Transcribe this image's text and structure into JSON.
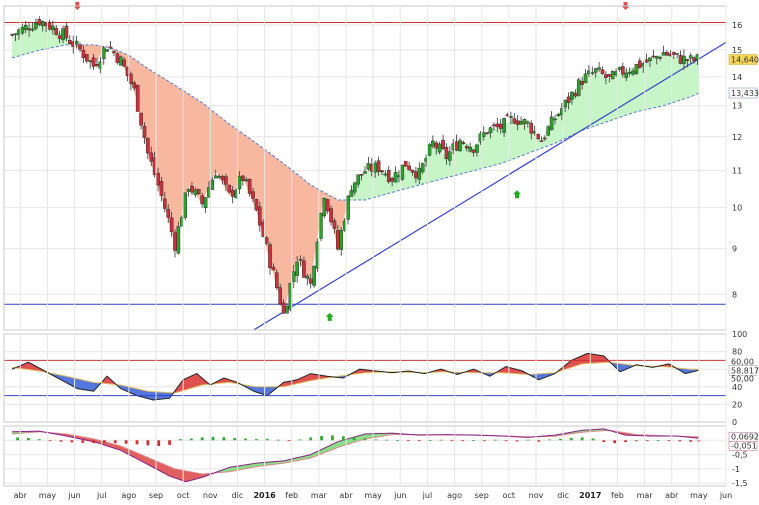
{
  "chart_data": [
    {
      "type": "candlestick",
      "title": "",
      "xlabel": "",
      "ylabel": "",
      "y_scale": "log",
      "ylim": [
        7.3,
        16.8
      ],
      "yticks": [
        8,
        9,
        10,
        11,
        12,
        13,
        14,
        15,
        16
      ],
      "last_price_label": "14,640",
      "moving_average_label": "13,433",
      "x_ticks": [
        {
          "label": "abr",
          "x": 0.3,
          "bold": false
        },
        {
          "label": "may",
          "x": 1.3,
          "bold": false
        },
        {
          "label": "jun",
          "x": 2.3,
          "bold": false
        },
        {
          "label": "jul",
          "x": 3.3,
          "bold": false
        },
        {
          "label": "ago",
          "x": 4.3,
          "bold": false
        },
        {
          "label": "sep",
          "x": 5.3,
          "bold": false
        },
        {
          "label": "oct",
          "x": 6.3,
          "bold": false
        },
        {
          "label": "nov",
          "x": 7.3,
          "bold": false
        },
        {
          "label": "dic",
          "x": 8.3,
          "bold": false
        },
        {
          "label": "2016",
          "x": 9.3,
          "bold": true
        },
        {
          "label": "feb",
          "x": 10.3,
          "bold": false
        },
        {
          "label": "mar",
          "x": 11.3,
          "bold": false
        },
        {
          "label": "abr",
          "x": 12.3,
          "bold": false
        },
        {
          "label": "may",
          "x": 13.3,
          "bold": false
        },
        {
          "label": "jun",
          "x": 14.3,
          "bold": false
        },
        {
          "label": "jul",
          "x": 15.3,
          "bold": false
        },
        {
          "label": "ago",
          "x": 16.3,
          "bold": false
        },
        {
          "label": "sep",
          "x": 17.3,
          "bold": false
        },
        {
          "label": "oct",
          "x": 18.3,
          "bold": false
        },
        {
          "label": "nov",
          "x": 19.3,
          "bold": false
        },
        {
          "label": "dic",
          "x": 20.3,
          "bold": false
        },
        {
          "label": "2017",
          "x": 21.3,
          "bold": true
        },
        {
          "label": "feb",
          "x": 22.3,
          "bold": false
        },
        {
          "label": "mar",
          "x": 23.3,
          "bold": false
        },
        {
          "label": "abr",
          "x": 24.3,
          "bold": false
        },
        {
          "label": "may",
          "x": 25.3,
          "bold": false
        },
        {
          "label": "jun",
          "x": 26.3,
          "bold": false
        }
      ],
      "price_path": [
        [
          0.0,
          15.6
        ],
        [
          0.5,
          15.9
        ],
        [
          1.0,
          16.2
        ],
        [
          1.5,
          15.9
        ],
        [
          2.0,
          15.5
        ],
        [
          2.5,
          15.0
        ],
        [
          3.0,
          14.4
        ],
        [
          3.5,
          15.2
        ],
        [
          4.0,
          14.6
        ],
        [
          4.5,
          13.5
        ],
        [
          5.0,
          11.5
        ],
        [
          5.5,
          10.3
        ],
        [
          6.0,
          9.1
        ],
        [
          6.5,
          10.6
        ],
        [
          7.0,
          10.1
        ],
        [
          7.5,
          11.0
        ],
        [
          8.0,
          10.3
        ],
        [
          8.5,
          10.8
        ],
        [
          9.0,
          9.9
        ],
        [
          9.5,
          8.7
        ],
        [
          10.0,
          7.6
        ],
        [
          10.5,
          8.8
        ],
        [
          11.0,
          8.2
        ],
        [
          11.5,
          10.4
        ],
        [
          12.0,
          9.0
        ],
        [
          12.5,
          10.6
        ],
        [
          13.0,
          11.0
        ],
        [
          13.5,
          11.1
        ],
        [
          14.0,
          10.8
        ],
        [
          14.5,
          11.2
        ],
        [
          15.0,
          10.9
        ],
        [
          15.5,
          11.8
        ],
        [
          16.0,
          11.4
        ],
        [
          16.5,
          11.9
        ],
        [
          17.0,
          11.7
        ],
        [
          17.5,
          12.2
        ],
        [
          18.0,
          12.3
        ],
        [
          18.5,
          12.6
        ],
        [
          19.0,
          12.4
        ],
        [
          19.5,
          11.9
        ],
        [
          20.0,
          12.6
        ],
        [
          20.5,
          13.2
        ],
        [
          21.0,
          13.9
        ],
        [
          21.5,
          14.2
        ],
        [
          22.0,
          13.9
        ],
        [
          22.5,
          14.2
        ],
        [
          23.0,
          14.4
        ],
        [
          23.5,
          14.6
        ],
        [
          24.0,
          14.9
        ],
        [
          24.5,
          14.7
        ],
        [
          25.0,
          14.6
        ],
        [
          25.3,
          14.64
        ]
      ],
      "moving_average": [
        [
          0.0,
          14.7
        ],
        [
          1.0,
          15.0
        ],
        [
          2.0,
          15.2
        ],
        [
          3.0,
          15.2
        ],
        [
          3.6,
          15.1
        ],
        [
          4.3,
          14.8
        ],
        [
          5.0,
          14.3
        ],
        [
          6.0,
          13.7
        ],
        [
          7.0,
          13.1
        ],
        [
          8.0,
          12.4
        ],
        [
          9.0,
          11.8
        ],
        [
          10.0,
          11.2
        ],
        [
          11.0,
          10.6
        ],
        [
          12.0,
          10.2
        ],
        [
          13.0,
          10.2
        ],
        [
          14.0,
          10.4
        ],
        [
          15.0,
          10.6
        ],
        [
          16.0,
          10.8
        ],
        [
          17.0,
          11.0
        ],
        [
          18.0,
          11.2
        ],
        [
          19.0,
          11.5
        ],
        [
          20.0,
          11.8
        ],
        [
          21.0,
          12.2
        ],
        [
          22.0,
          12.5
        ],
        [
          23.0,
          12.8
        ],
        [
          24.0,
          13.0
        ],
        [
          25.0,
          13.3
        ],
        [
          25.3,
          13.43
        ]
      ],
      "horizontal_lines": [
        {
          "value": 16.1,
          "color": "#cc3333"
        },
        {
          "value": 7.8,
          "color": "#3344cc"
        }
      ],
      "trendline": {
        "start": [
          8.9,
          7.3
        ],
        "end": [
          26.3,
          15.3
        ],
        "color": "#3344cc"
      },
      "signal_arrows": [
        {
          "x": 2.4,
          "direction": "down",
          "color": "#e05050"
        },
        {
          "x": 22.6,
          "direction": "down",
          "color": "#e05050"
        },
        {
          "x": 11.7,
          "value": 7.55,
          "direction": "up",
          "color": "#22aa22"
        },
        {
          "x": 18.6,
          "value": 10.35,
          "direction": "up",
          "color": "#22aa22"
        }
      ],
      "colors": {
        "up": "#2e9e2e",
        "down": "#c8323c",
        "wick": "#333333",
        "fill_above": "#c8f5c8",
        "fill_below": "#f8b8a0",
        "ma_line": "#5577cc",
        "trendline": "#3344cc"
      }
    },
    {
      "type": "line",
      "title": "",
      "ylim": [
        0,
        100
      ],
      "yticks": [
        0,
        20,
        40,
        60,
        80,
        100
      ],
      "levels": [
        {
          "value": 70,
          "color": "#cc3333"
        },
        {
          "value": 30,
          "color": "#3344cc"
        }
      ],
      "value_labels": [
        "58,817",
        "60,00",
        "50,00"
      ],
      "oscillator": [
        [
          0.0,
          60
        ],
        [
          0.6,
          68
        ],
        [
          1.2,
          58
        ],
        [
          1.8,
          48
        ],
        [
          2.4,
          38
        ],
        [
          3.0,
          35
        ],
        [
          3.5,
          52
        ],
        [
          4.0,
          38
        ],
        [
          4.6,
          30
        ],
        [
          5.2,
          25
        ],
        [
          5.8,
          27
        ],
        [
          6.3,
          48
        ],
        [
          6.8,
          55
        ],
        [
          7.3,
          42
        ],
        [
          7.8,
          50
        ],
        [
          8.3,
          45
        ],
        [
          8.9,
          35
        ],
        [
          9.4,
          30
        ],
        [
          10.0,
          45
        ],
        [
          10.5,
          48
        ],
        [
          11.0,
          55
        ],
        [
          11.6,
          52
        ],
        [
          12.2,
          50
        ],
        [
          12.8,
          60
        ],
        [
          13.4,
          58
        ],
        [
          14.0,
          56
        ],
        [
          14.6,
          58
        ],
        [
          15.2,
          55
        ],
        [
          15.8,
          60
        ],
        [
          16.4,
          54
        ],
        [
          17.0,
          60
        ],
        [
          17.6,
          52
        ],
        [
          18.2,
          63
        ],
        [
          18.8,
          58
        ],
        [
          19.4,
          48
        ],
        [
          20.0,
          55
        ],
        [
          20.6,
          70
        ],
        [
          21.2,
          78
        ],
        [
          21.8,
          75
        ],
        [
          22.4,
          57
        ],
        [
          23.0,
          65
        ],
        [
          23.6,
          62
        ],
        [
          24.2,
          66
        ],
        [
          24.8,
          55
        ],
        [
          25.3,
          58.8
        ]
      ],
      "signal": [
        [
          0.0,
          62
        ],
        [
          1.0,
          58
        ],
        [
          2.0,
          52
        ],
        [
          3.0,
          45
        ],
        [
          4.0,
          42
        ],
        [
          5.0,
          35
        ],
        [
          6.0,
          33
        ],
        [
          7.0,
          42
        ],
        [
          8.0,
          45
        ],
        [
          9.0,
          40
        ],
        [
          10.0,
          40
        ],
        [
          11.0,
          47
        ],
        [
          12.0,
          52
        ],
        [
          13.0,
          56
        ],
        [
          14.0,
          57
        ],
        [
          15.0,
          56
        ],
        [
          16.0,
          57
        ],
        [
          17.0,
          56
        ],
        [
          18.0,
          56
        ],
        [
          19.0,
          54
        ],
        [
          20.0,
          56
        ],
        [
          21.0,
          66
        ],
        [
          22.0,
          68
        ],
        [
          23.0,
          64
        ],
        [
          24.0,
          63
        ],
        [
          25.0,
          60
        ],
        [
          25.3,
          60
        ]
      ],
      "colors": {
        "line": "#222222",
        "signal": "#e0c060",
        "above": "#e05050",
        "below": "#5577dd"
      }
    },
    {
      "type": "bar",
      "title": "",
      "ylim": [
        -1.6,
        0.5
      ],
      "yticks": [
        -1.5,
        -1,
        -0.5,
        0
      ],
      "ytick_labels": [
        "-1,5",
        "-1",
        "-0,5",
        "0"
      ],
      "value_labels": [
        "0,0692",
        "-0,051"
      ],
      "macd": [
        [
          0.0,
          0.3
        ],
        [
          1.0,
          0.32
        ],
        [
          2.0,
          0.15
        ],
        [
          3.0,
          -0.05
        ],
        [
          4.0,
          -0.35
        ],
        [
          5.0,
          -0.85
        ],
        [
          5.8,
          -1.25
        ],
        [
          6.4,
          -1.45
        ],
        [
          7.0,
          -1.3
        ],
        [
          8.0,
          -0.95
        ],
        [
          9.0,
          -0.8
        ],
        [
          10.0,
          -0.72
        ],
        [
          11.0,
          -0.5
        ],
        [
          12.0,
          -0.05
        ],
        [
          13.0,
          0.22
        ],
        [
          14.0,
          0.25
        ],
        [
          15.0,
          0.18
        ],
        [
          16.0,
          0.2
        ],
        [
          17.0,
          0.18
        ],
        [
          18.0,
          0.15
        ],
        [
          19.0,
          0.1
        ],
        [
          20.0,
          0.18
        ],
        [
          21.0,
          0.35
        ],
        [
          21.8,
          0.4
        ],
        [
          22.6,
          0.18
        ],
        [
          23.5,
          0.15
        ],
        [
          24.5,
          0.15
        ],
        [
          25.3,
          0.07
        ]
      ],
      "macd_signal": [
        [
          0.0,
          0.22
        ],
        [
          1.0,
          0.3
        ],
        [
          2.0,
          0.22
        ],
        [
          3.0,
          0.05
        ],
        [
          4.0,
          -0.2
        ],
        [
          5.0,
          -0.6
        ],
        [
          6.0,
          -1.0
        ],
        [
          7.0,
          -1.18
        ],
        [
          8.0,
          -1.1
        ],
        [
          9.0,
          -0.92
        ],
        [
          10.0,
          -0.8
        ],
        [
          11.0,
          -0.62
        ],
        [
          12.0,
          -0.25
        ],
        [
          13.0,
          0.05
        ],
        [
          14.0,
          0.2
        ],
        [
          15.0,
          0.2
        ],
        [
          16.0,
          0.19
        ],
        [
          17.0,
          0.19
        ],
        [
          18.0,
          0.16
        ],
        [
          19.0,
          0.12
        ],
        [
          20.0,
          0.14
        ],
        [
          21.0,
          0.28
        ],
        [
          22.0,
          0.35
        ],
        [
          23.0,
          0.2
        ],
        [
          24.0,
          0.16
        ],
        [
          25.3,
          0.12
        ]
      ],
      "histogram": [
        [
          0.2,
          0.1
        ],
        [
          0.6,
          0.08
        ],
        [
          1.0,
          0.04
        ],
        [
          1.4,
          -0.02
        ],
        [
          1.8,
          -0.05
        ],
        [
          2.2,
          -0.07
        ],
        [
          2.6,
          -0.09
        ],
        [
          3.0,
          -0.1
        ],
        [
          3.4,
          -0.09
        ],
        [
          3.8,
          -0.1
        ],
        [
          4.2,
          -0.12
        ],
        [
          4.6,
          -0.14
        ],
        [
          5.0,
          -0.18
        ],
        [
          5.4,
          -0.2
        ],
        [
          5.8,
          -0.16
        ],
        [
          6.2,
          0.04
        ],
        [
          6.6,
          0.06
        ],
        [
          7.0,
          0.1
        ],
        [
          7.4,
          0.12
        ],
        [
          7.8,
          0.11
        ],
        [
          8.2,
          0.08
        ],
        [
          8.6,
          0.06
        ],
        [
          9.0,
          0.04
        ],
        [
          9.4,
          0.05
        ],
        [
          9.8,
          0.02
        ],
        [
          10.2,
          -0.03
        ],
        [
          10.6,
          0.03
        ],
        [
          11.0,
          0.1
        ],
        [
          11.4,
          0.15
        ],
        [
          11.8,
          0.17
        ],
        [
          12.2,
          0.14
        ],
        [
          12.6,
          0.1
        ],
        [
          13.0,
          0.06
        ],
        [
          13.4,
          0.03
        ],
        [
          13.8,
          0.02
        ],
        [
          14.2,
          0.01
        ],
        [
          14.6,
          -0.02
        ],
        [
          15.0,
          -0.03
        ],
        [
          15.4,
          0.01
        ],
        [
          15.8,
          0.02
        ],
        [
          16.2,
          -0.02
        ],
        [
          16.6,
          -0.03
        ],
        [
          17.0,
          0.01
        ],
        [
          17.4,
          -0.02
        ],
        [
          17.8,
          0.02
        ],
        [
          18.2,
          -0.03
        ],
        [
          18.6,
          -0.04
        ],
        [
          19.0,
          0.02
        ],
        [
          19.4,
          -0.05
        ],
        [
          19.8,
          0.03
        ],
        [
          20.2,
          0.05
        ],
        [
          20.6,
          0.08
        ],
        [
          21.0,
          0.1
        ],
        [
          21.4,
          0.06
        ],
        [
          21.8,
          -0.06
        ],
        [
          22.2,
          -0.1
        ],
        [
          22.6,
          -0.06
        ],
        [
          23.0,
          -0.03
        ],
        [
          23.4,
          -0.02
        ],
        [
          23.8,
          0.01
        ],
        [
          24.2,
          -0.01
        ],
        [
          24.6,
          -0.04
        ],
        [
          25.0,
          -0.05
        ],
        [
          25.3,
          -0.05
        ]
      ],
      "colors": {
        "positive": "#33aa33",
        "negative": "#cc3333",
        "macd": "#882288",
        "signal": "#e08888",
        "fill_up": "#88e088",
        "fill_down": "#e06060"
      }
    }
  ]
}
